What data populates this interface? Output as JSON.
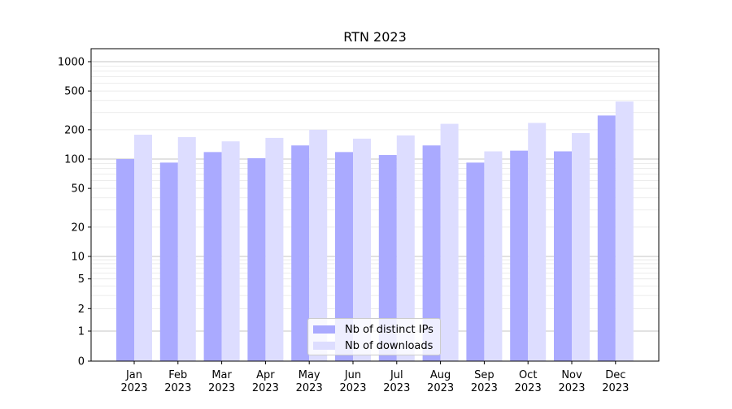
{
  "chart_data": {
    "type": "bar",
    "title": "RTN 2023",
    "xlabel": "",
    "ylabel": "",
    "yscale": "symlog",
    "ylim": [
      0,
      1300
    ],
    "y_ticks": [
      {
        "value": 0,
        "label": "0"
      },
      {
        "value": 1,
        "label": "1"
      },
      {
        "value": 2,
        "label": "2"
      },
      {
        "value": 5,
        "label": "5"
      },
      {
        "value": 10,
        "label": "10"
      },
      {
        "value": 20,
        "label": "20"
      },
      {
        "value": 50,
        "label": "50"
      },
      {
        "value": 100,
        "label": "100"
      },
      {
        "value": 200,
        "label": "200"
      },
      {
        "value": 500,
        "label": "500"
      },
      {
        "value": 1000,
        "label": "1000"
      }
    ],
    "categories": [
      [
        "Jan",
        "2023"
      ],
      [
        "Feb",
        "2023"
      ],
      [
        "Mar",
        "2023"
      ],
      [
        "Apr",
        "2023"
      ],
      [
        "May",
        "2023"
      ],
      [
        "Jun",
        "2023"
      ],
      [
        "Jul",
        "2023"
      ],
      [
        "Aug",
        "2023"
      ],
      [
        "Sep",
        "2023"
      ],
      [
        "Oct",
        "2023"
      ],
      [
        "Nov",
        "2023"
      ],
      [
        "Dec",
        "2023"
      ]
    ],
    "series": [
      {
        "name": "Nb of distinct IPs",
        "color": "#aaaaff",
        "values": [
          100,
          92,
          118,
          102,
          138,
          118,
          110,
          138,
          92,
          122,
          120,
          280
        ]
      },
      {
        "name": "Nb of downloads",
        "color": "#ddddff",
        "values": [
          178,
          168,
          152,
          165,
          200,
          162,
          175,
          230,
          120,
          235,
          185,
          390
        ]
      }
    ],
    "grid": true,
    "legend_position": "lower-center"
  }
}
